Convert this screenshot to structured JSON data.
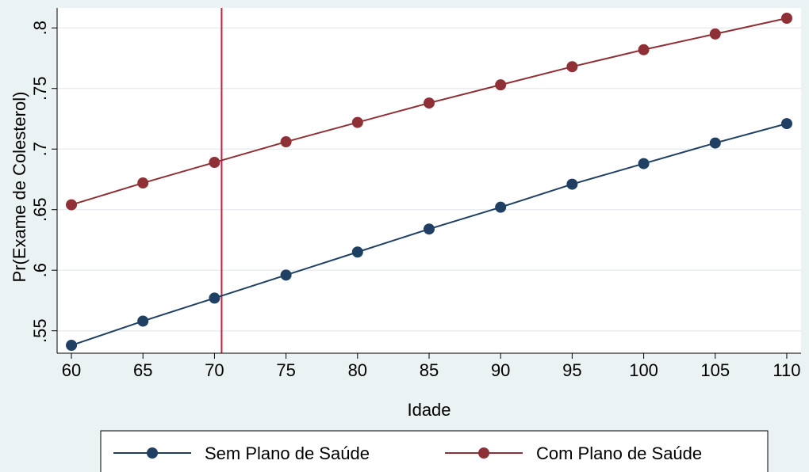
{
  "chart_data": {
    "type": "line",
    "title": "",
    "xlabel": "Idade",
    "ylabel": "Pr(Exame de Colesterol)",
    "x": [
      60,
      65,
      70,
      75,
      80,
      85,
      90,
      95,
      100,
      105,
      110
    ],
    "xticks": [
      "60",
      "65",
      "70",
      "75",
      "80",
      "85",
      "90",
      "95",
      "100",
      "105",
      "110"
    ],
    "yticks": [
      ".55",
      ".6",
      ".65",
      ".7",
      ".75",
      ".8"
    ],
    "ytick_values": [
      0.55,
      0.6,
      0.65,
      0.7,
      0.75,
      0.8
    ],
    "xlim": [
      59,
      111
    ],
    "ylim": [
      0.5315,
      0.8165
    ],
    "grid": true,
    "legend_position": "bottom",
    "reference_line": {
      "axis": "x",
      "value": 70.5,
      "color": "#c0203a"
    },
    "series": [
      {
        "name": "Sem Plano de Saúde",
        "color": "#1f3f63",
        "values": [
          0.538,
          0.558,
          0.577,
          0.596,
          0.615,
          0.634,
          0.652,
          0.671,
          0.688,
          0.705,
          0.721
        ]
      },
      {
        "name": "Com Plano de Saúde",
        "color": "#8e3035",
        "values": [
          0.654,
          0.672,
          0.689,
          0.706,
          0.722,
          0.738,
          0.753,
          0.768,
          0.782,
          0.795,
          0.808
        ]
      }
    ]
  }
}
